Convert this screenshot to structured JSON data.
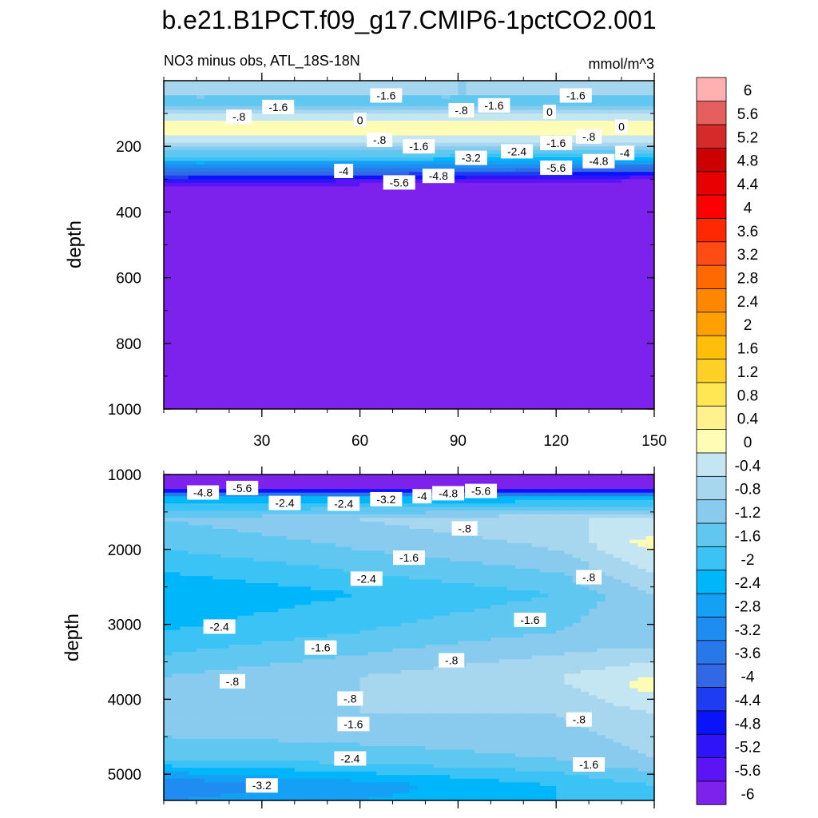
{
  "title": "b.e21.B1PCT.f09_g17.CMIP6-1pctCO2.001",
  "subtitle_left": "NO3 minus obs, ATL_18S-18N",
  "subtitle_right": "mmol/m^3",
  "colorbar": {
    "colors": [
      "#7d22ed",
      "#5d14f5",
      "#3014f9",
      "#0a14fb",
      "#1e3cf2",
      "#3268e6",
      "#2878ea",
      "#1e8cf0",
      "#14a0f5",
      "#00b6fa",
      "#3cc3f5",
      "#60c8f0",
      "#88cbee",
      "#a6d7ef",
      "#c4e6f3",
      "#fffcb6",
      "#fff18e",
      "#ffe653",
      "#ffd028",
      "#ffbe0a",
      "#ffa000",
      "#ff8700",
      "#ff6900",
      "#ff4b14",
      "#ff2800",
      "#ff0000",
      "#e60000",
      "#cc0000",
      "#d42a2a",
      "#e65f5f",
      "#ffb0b0"
    ],
    "labels": [
      "-6",
      "-5.6",
      "-5.2",
      "-4.8",
      "-4.4",
      "-4",
      "-3.6",
      "-3.2",
      "-2.8",
      "-2.4",
      "-2",
      "-1.6",
      "-1.2",
      "-0.8",
      "-0.4",
      "0",
      "0.4",
      "0.8",
      "1.2",
      "1.6",
      "2",
      "2.4",
      "2.8",
      "3.2",
      "3.6",
      "4",
      "4.4",
      "4.8",
      "5.2",
      "5.6",
      "6"
    ]
  },
  "chart_data": [
    {
      "type": "heatmap",
      "panel": "upper",
      "title": "NO3 minus obs, ATL_18S-18N",
      "units": "mmol/m^3",
      "xlabel": "",
      "ylabel": "depth",
      "xlim": [
        0,
        150
      ],
      "ylim": [
        1000,
        0
      ],
      "y_reversed": true,
      "xticks": [
        30,
        60,
        90,
        120,
        150
      ],
      "yticks": [
        200,
        400,
        600,
        800,
        1000
      ],
      "contour_levels": [
        -6,
        -5.6,
        -5.2,
        -4.8,
        -4.4,
        -4,
        -3.6,
        -3.2,
        -2.8,
        -2.4,
        -2,
        -1.6,
        -1.2,
        -0.8,
        -0.4,
        0,
        0.4,
        0.8,
        1.2,
        1.6,
        2,
        2.4,
        2.8,
        3.2,
        3.6,
        4,
        4.4,
        4.8,
        5.2,
        5.6,
        6
      ],
      "depth_profiles": [
        {
          "x": 0,
          "depth": [
            0,
            40,
            60,
            90,
            120,
            150,
            190,
            230,
            270,
            320,
            400,
            1000
          ],
          "value": [
            -0.8,
            -0.8,
            -1.6,
            -0.8,
            0,
            0.2,
            -0.4,
            -1.6,
            -3.2,
            -5.6,
            -6,
            -6
          ]
        },
        {
          "x": 75,
          "depth": [
            0,
            40,
            60,
            90,
            120,
            150,
            190,
            230,
            270,
            310,
            380,
            1000
          ],
          "value": [
            -0.8,
            -0.8,
            -1.6,
            -0.8,
            0,
            0.2,
            -0.4,
            -1.6,
            -3.2,
            -5.6,
            -6,
            -6
          ]
        },
        {
          "x": 150,
          "depth": [
            0,
            40,
            60,
            90,
            120,
            150,
            190,
            220,
            260,
            300,
            360,
            1000
          ],
          "value": [
            -0.8,
            -0.8,
            -1.6,
            -0.8,
            0,
            0.2,
            -0.4,
            -1.6,
            -3.2,
            -5.6,
            -6,
            -6
          ]
        }
      ],
      "contour_labels": [
        {
          "text": "-1.6",
          "x": 68,
          "y": 45
        },
        {
          "text": "-1.6",
          "x": 126,
          "y": 45
        },
        {
          "text": "-1.6",
          "x": 35,
          "y": 80
        },
        {
          "text": "-.8",
          "x": 23,
          "y": 110
        },
        {
          "text": "0",
          "x": 60,
          "y": 120
        },
        {
          "text": "-.8",
          "x": 91,
          "y": 90
        },
        {
          "text": "-1.6",
          "x": 101,
          "y": 75
        },
        {
          "text": "0",
          "x": 118,
          "y": 95
        },
        {
          "text": "0",
          "x": 140,
          "y": 140
        },
        {
          "text": "-.8",
          "x": 130,
          "y": 170
        },
        {
          "text": "-.8",
          "x": 66,
          "y": 180
        },
        {
          "text": "-1.6",
          "x": 78,
          "y": 200
        },
        {
          "text": "-1.6",
          "x": 120,
          "y": 190
        },
        {
          "text": "-2.4",
          "x": 108,
          "y": 215
        },
        {
          "text": "-3.2",
          "x": 94,
          "y": 235
        },
        {
          "text": "-4",
          "x": 141,
          "y": 220
        },
        {
          "text": "-4.8",
          "x": 133,
          "y": 245
        },
        {
          "text": "-5.6",
          "x": 120,
          "y": 265
        },
        {
          "text": "-4",
          "x": 55,
          "y": 275
        },
        {
          "text": "-4.8",
          "x": 84,
          "y": 290
        },
        {
          "text": "-5.6",
          "x": 72,
          "y": 310
        }
      ]
    },
    {
      "type": "heatmap",
      "panel": "lower",
      "title": "",
      "xlabel": "",
      "ylabel": "depth",
      "xlim": [
        0,
        150
      ],
      "ylim": [
        5350,
        1000
      ],
      "y_reversed": true,
      "yticks": [
        1000,
        2000,
        3000,
        4000,
        5000
      ],
      "contour_levels": [
        -6,
        -5.6,
        -5.2,
        -4.8,
        -4.4,
        -4,
        -3.6,
        -3.2,
        -2.8,
        -2.4,
        -2,
        -1.6,
        -1.2,
        -0.8,
        -0.4,
        0,
        0.4,
        0.8,
        1.2,
        1.6,
        2,
        2.4,
        2.8,
        3.2,
        3.6,
        4,
        4.4,
        4.8,
        5.2,
        5.6,
        6
      ],
      "depth_profiles": [
        {
          "x": 0,
          "depth": [
            1000,
            1180,
            1300,
            1600,
            2000,
            2600,
            3100,
            3700,
            4200,
            4800,
            5150,
            5350
          ],
          "value": [
            -6,
            -5.6,
            -2.4,
            -1.2,
            -1.6,
            -2.4,
            -2,
            -1.2,
            -0.8,
            -1.6,
            -3.2,
            -2.8
          ]
        },
        {
          "x": 120,
          "depth": [
            1000,
            1180,
            1300,
            1600,
            2000,
            2600,
            3100,
            3700,
            4200,
            4800,
            5150,
            5350
          ],
          "value": [
            -6,
            -5.6,
            -2.4,
            -0.4,
            -0.8,
            -1.6,
            -1.2,
            -0.4,
            -0.8,
            -1.2,
            -2,
            -2
          ]
        },
        {
          "x": 150,
          "depth": [
            1000,
            1180,
            1300,
            1600,
            1900,
            2600,
            3300,
            3800,
            4200,
            4800,
            5150,
            5350
          ],
          "value": [
            -6,
            -5.6,
            -2.4,
            -0.4,
            0.2,
            -0.8,
            -0.8,
            0.2,
            -0.4,
            -0.8,
            -1.6,
            -1.6
          ]
        }
      ],
      "contour_labels": [
        {
          "text": "-4.8",
          "x": 12,
          "y": 1240
        },
        {
          "text": "-5.6",
          "x": 24,
          "y": 1180
        },
        {
          "text": "-2.4",
          "x": 37,
          "y": 1380
        },
        {
          "text": "-2.4",
          "x": 55,
          "y": 1390
        },
        {
          "text": "-3.2",
          "x": 68,
          "y": 1330
        },
        {
          "text": "-4",
          "x": 79,
          "y": 1290
        },
        {
          "text": "-4.8",
          "x": 87,
          "y": 1250
        },
        {
          "text": "-5.6",
          "x": 97,
          "y": 1220
        },
        {
          "text": "-.8",
          "x": 92,
          "y": 1720
        },
        {
          "text": "-1.6",
          "x": 75,
          "y": 2110
        },
        {
          "text": "-2.4",
          "x": 62,
          "y": 2390
        },
        {
          "text": "-.8",
          "x": 130,
          "y": 2370
        },
        {
          "text": "-1.6",
          "x": 112,
          "y": 2940
        },
        {
          "text": "-2.4",
          "x": 17,
          "y": 3030
        },
        {
          "text": "-1.6",
          "x": 48,
          "y": 3310
        },
        {
          "text": "-.8",
          "x": 88,
          "y": 3480
        },
        {
          "text": "-.8",
          "x": 21,
          "y": 3760
        },
        {
          "text": "-.8",
          "x": 57,
          "y": 3990
        },
        {
          "text": "-.8",
          "x": 127,
          "y": 4270
        },
        {
          "text": "-1.6",
          "x": 58,
          "y": 4330
        },
        {
          "text": "-2.4",
          "x": 57,
          "y": 4790
        },
        {
          "text": "-1.6",
          "x": 130,
          "y": 4870
        },
        {
          "text": "-3.2",
          "x": 30,
          "y": 5150
        }
      ]
    }
  ]
}
